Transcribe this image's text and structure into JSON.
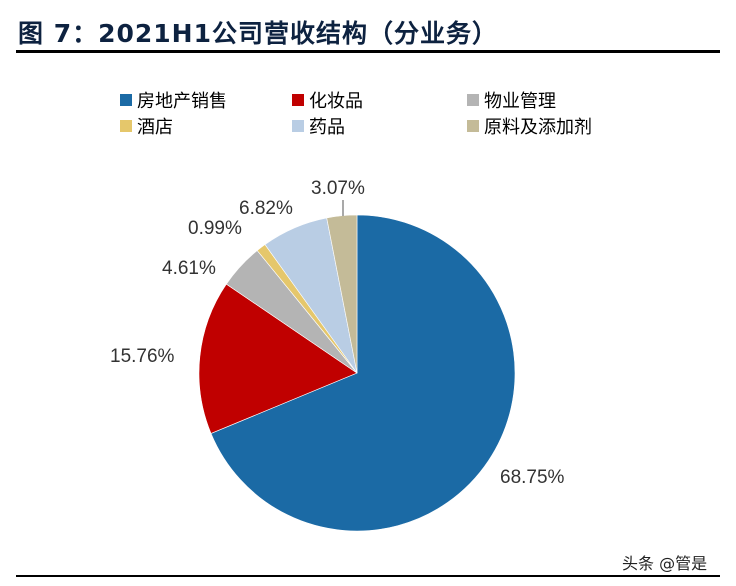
{
  "title": "图 7：2021H1公司营收结构（分业务）",
  "watermark": "头条 @管是",
  "chart_data": {
    "type": "pie",
    "title": "图 7：2021H1公司营收结构（分业务）",
    "categories": [
      "房地产销售",
      "化妆品",
      "物业管理",
      "酒店",
      "药品",
      "原料及添加剂"
    ],
    "values": [
      68.75,
      15.76,
      4.61,
      0.99,
      6.82,
      3.07
    ],
    "labels": [
      "68.75%",
      "15.76%",
      "4.61%",
      "0.99%",
      "6.82%",
      "3.07%"
    ],
    "colors": [
      "#1b6aa5",
      "#c00000",
      "#b4b4b4",
      "#e5c76b",
      "#b9cde4",
      "#c4bb98"
    ],
    "legend_position": "top",
    "start_angle": "12 o'clock, clockwise"
  },
  "legend": [
    {
      "label": "房地产销售",
      "color": "#1b6aa5"
    },
    {
      "label": "化妆品",
      "color": "#c00000"
    },
    {
      "label": "物业管理",
      "color": "#b4b4b4"
    },
    {
      "label": "酒店",
      "color": "#e5c76b"
    },
    {
      "label": "药品",
      "color": "#b9cde4"
    },
    {
      "label": "原料及添加剂",
      "color": "#c4bb98"
    }
  ]
}
